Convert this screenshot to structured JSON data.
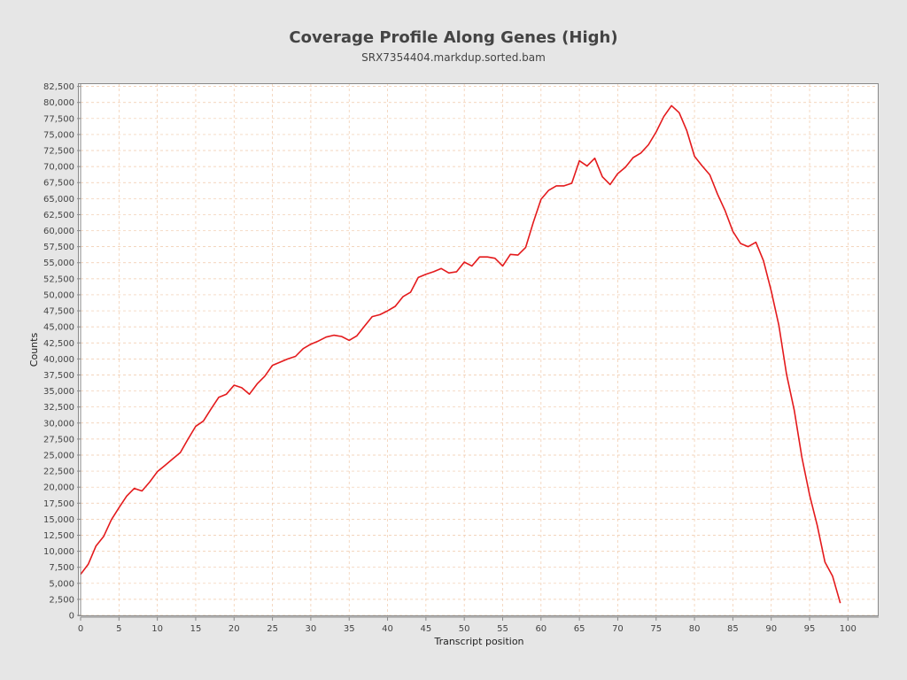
{
  "chart_data": {
    "type": "line",
    "title": "Coverage Profile Along Genes (High)",
    "subtitle": "SRX7354404.markdup.sorted.bam",
    "xlabel": "Transcript position",
    "ylabel": "Counts",
    "xlim": [
      0,
      104
    ],
    "ylim": [
      0,
      83000
    ],
    "x_ticks": [
      0,
      5,
      10,
      15,
      20,
      25,
      30,
      35,
      40,
      45,
      50,
      55,
      60,
      65,
      70,
      75,
      80,
      85,
      90,
      95,
      100
    ],
    "y_ticks": [
      "0",
      "2,500",
      "5,000",
      "7,500",
      "10,000",
      "12,500",
      "15,000",
      "17,500",
      "20,000",
      "22,500",
      "25,000",
      "27,500",
      "30,000",
      "32,500",
      "35,000",
      "37,500",
      "40,000",
      "42,500",
      "45,000",
      "47,500",
      "50,000",
      "52,500",
      "55,000",
      "57,500",
      "60,000",
      "62,500",
      "65,000",
      "67,500",
      "70,000",
      "72,500",
      "75,000",
      "77,500",
      "80,000",
      "82,500"
    ],
    "grid": true,
    "colors": {
      "line": "#e41a1c",
      "grid": "#f0c8a8",
      "plot_background": "#ffffff",
      "page_background": "#e6e6e6",
      "axis": "#888888"
    },
    "series": [
      {
        "x": [
          0,
          1,
          2,
          3,
          4,
          5,
          6,
          7,
          8,
          9,
          10,
          11,
          12,
          13,
          14,
          15,
          16,
          17,
          18,
          19,
          20,
          21,
          22,
          23,
          24,
          25,
          26,
          27,
          28,
          29,
          30,
          31,
          32,
          33,
          34,
          35,
          36,
          37,
          38,
          39,
          40,
          41,
          42,
          43,
          44,
          45,
          46,
          47,
          48,
          49,
          50,
          51,
          52,
          53,
          54,
          55,
          56,
          57,
          58,
          59,
          60,
          61,
          62,
          63,
          64,
          65,
          66,
          67,
          68,
          69,
          70,
          71,
          72,
          73,
          74,
          75,
          76,
          77,
          78,
          79,
          80,
          81,
          82,
          83,
          84,
          85,
          86,
          87,
          88,
          89,
          90,
          91,
          92,
          93,
          94,
          95,
          96,
          97,
          98,
          99
        ],
        "values": [
          6400,
          8000,
          10800,
          12300,
          14900,
          16800,
          18600,
          19800,
          19400,
          20800,
          22400,
          23400,
          24400,
          25400,
          27500,
          29500,
          30300,
          32200,
          34000,
          34500,
          35900,
          35500,
          34500,
          36100,
          37300,
          39000,
          39500,
          40000,
          40400,
          41600,
          42300,
          42800,
          43400,
          43700,
          43500,
          42900,
          43600,
          45100,
          46600,
          46900,
          47500,
          48200,
          49700,
          50400,
          52700,
          53200,
          53600,
          54100,
          53400,
          53600,
          55100,
          54500,
          55900,
          55900,
          55700,
          54500,
          56300,
          56200,
          57400,
          61300,
          64900,
          66300,
          67000,
          67000,
          67400,
          70900,
          70100,
          71300,
          68400,
          67200,
          68900,
          69900,
          71400,
          72100,
          73400,
          75400,
          77800,
          79500,
          78400,
          75600,
          71600,
          70100,
          68700,
          65700,
          63100,
          59900,
          58000,
          57500,
          58200,
          55300,
          50600,
          45200,
          37600,
          32000,
          24600,
          18800,
          14000,
          8300,
          6100,
          1900
        ]
      }
    ]
  }
}
